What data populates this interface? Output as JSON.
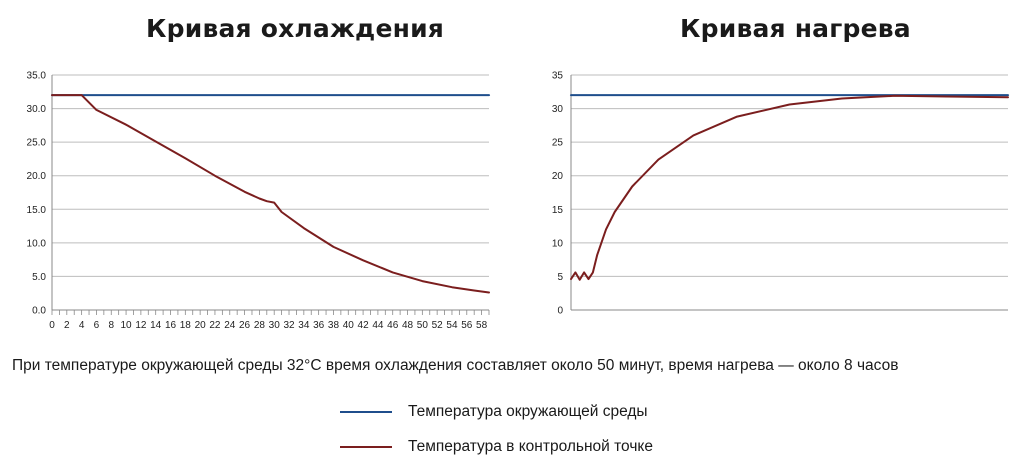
{
  "colors": {
    "ambient": "#1f4e8c",
    "control": "#7b1e1e",
    "grid": "#bdbdbd",
    "axis": "#888888"
  },
  "chart_data": [
    {
      "type": "line",
      "title": "Кривая охлаждения",
      "xlim": [
        0,
        59
      ],
      "ylim": [
        0,
        35
      ],
      "y_ticks": [
        "0.0",
        "5.0",
        "10.0",
        "15.0",
        "20.0",
        "25.0",
        "30.0",
        "35.0"
      ],
      "x_ticks": [
        "0",
        "2",
        "4",
        "6",
        "8",
        "10",
        "12",
        "14",
        "16",
        "18",
        "20",
        "22",
        "24",
        "26",
        "28",
        "30",
        "32",
        "34",
        "36",
        "38",
        "40",
        "42",
        "44",
        "46",
        "48",
        "50",
        "52",
        "54",
        "56",
        "58"
      ],
      "grid": true,
      "series": [
        {
          "name": "Температура окружающей среды",
          "color_key": "ambient",
          "x": [
            0,
            59
          ],
          "y": [
            32,
            32
          ]
        },
        {
          "name": "Температура в контрольной точке",
          "color_key": "control",
          "x": [
            0,
            4,
            6,
            10,
            14,
            18,
            22,
            26,
            28,
            29,
            30,
            31,
            34,
            38,
            42,
            46,
            50,
            54,
            57,
            59
          ],
          "y": [
            32,
            32,
            29.8,
            27.6,
            25.1,
            22.6,
            20.0,
            17.6,
            16.6,
            16.2,
            16.0,
            14.6,
            12.2,
            9.4,
            7.4,
            5.6,
            4.3,
            3.4,
            2.9,
            2.6
          ]
        }
      ]
    },
    {
      "type": "line",
      "title": "Кривая нагрева",
      "xlim": [
        0,
        100
      ],
      "ylim": [
        0,
        35
      ],
      "y_ticks": [
        "0",
        "5",
        "10",
        "15",
        "20",
        "25",
        "30",
        "35"
      ],
      "x_ticks": [],
      "grid": true,
      "series": [
        {
          "name": "Температура окружающей среды",
          "color_key": "ambient",
          "x": [
            0,
            100
          ],
          "y": [
            32,
            32
          ]
        },
        {
          "name": "Температура в контрольной точке",
          "color_key": "control",
          "x": [
            0,
            1,
            2,
            3,
            4,
            5,
            6,
            8,
            10,
            14,
            20,
            28,
            38,
            50,
            62,
            74,
            86,
            100
          ],
          "y": [
            4.6,
            5.6,
            4.5,
            5.6,
            4.6,
            5.6,
            8.2,
            12.0,
            14.6,
            18.4,
            22.4,
            26.0,
            28.8,
            30.6,
            31.5,
            31.9,
            31.8,
            31.7
          ]
        }
      ]
    }
  ],
  "caption": "При температуре окружающей среды 32°C время охлаждения составляет около 50 минут, время нагрева — около 8 часов",
  "legend": [
    {
      "label": "Температура окружающей среды",
      "color_key": "ambient"
    },
    {
      "label": "Температура в контрольной точке",
      "color_key": "control"
    }
  ]
}
